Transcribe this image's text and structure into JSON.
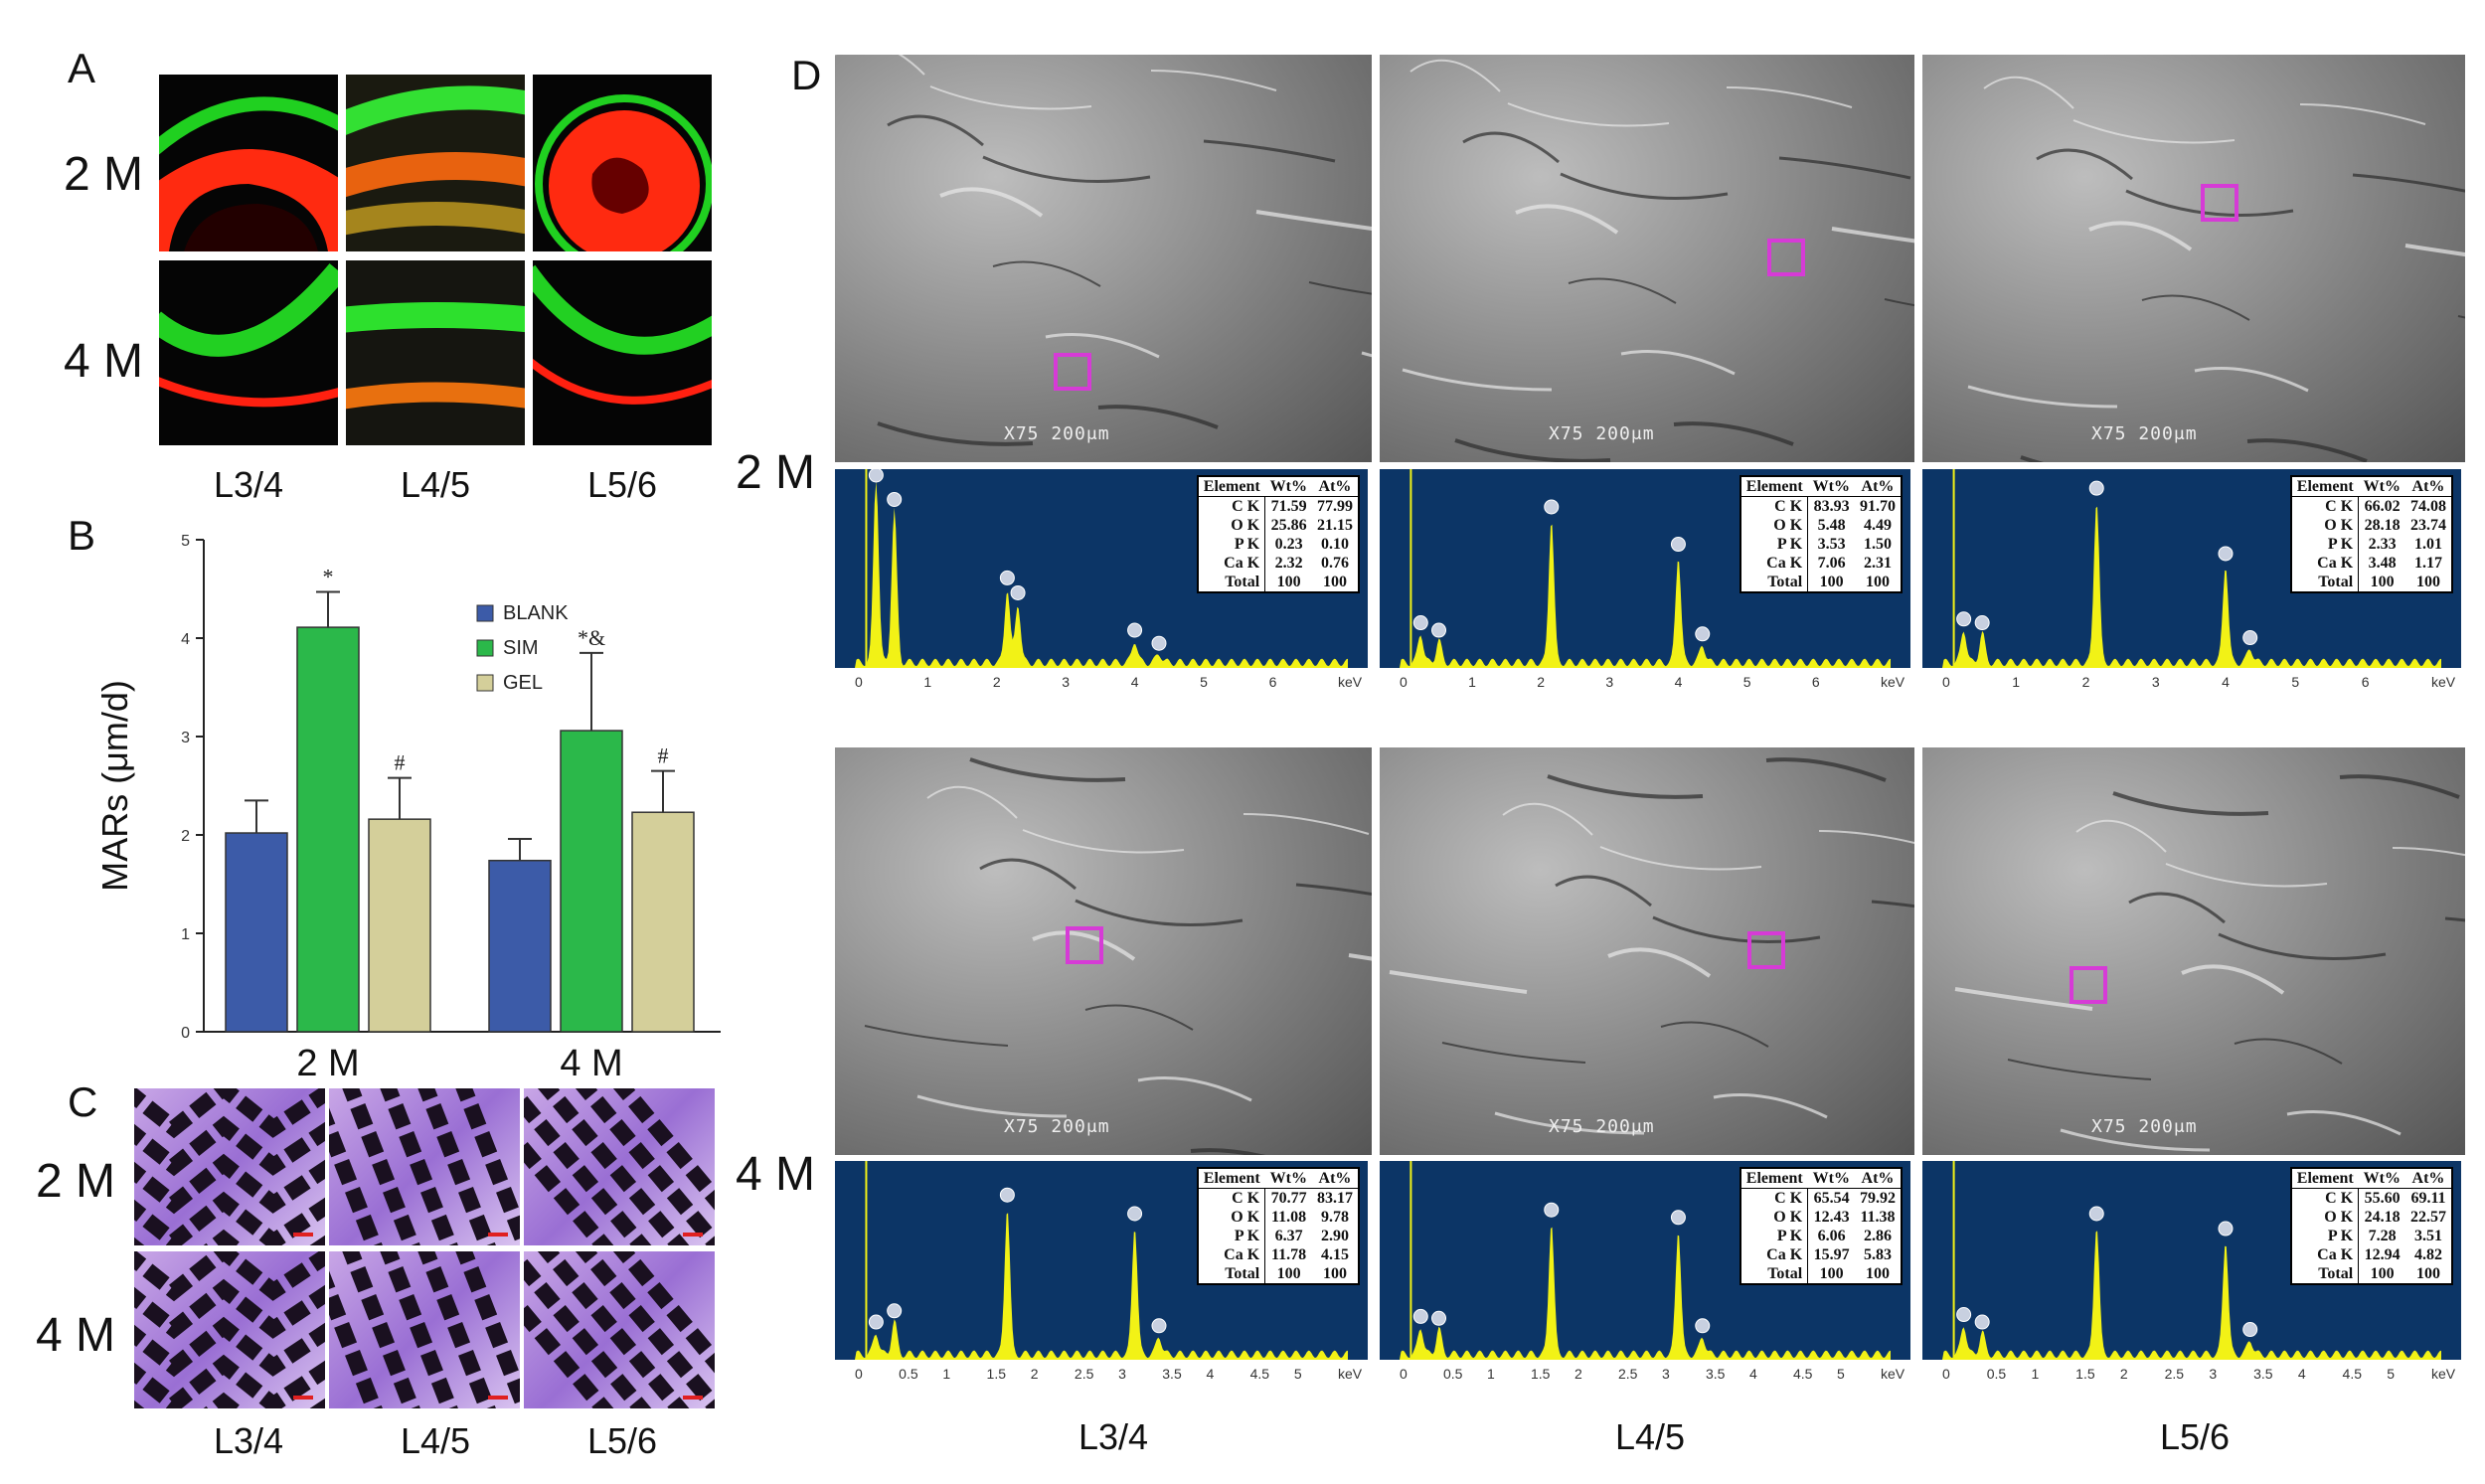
{
  "panel_labels": {
    "a": "A",
    "b": "B",
    "c": "C",
    "d": "D"
  },
  "timepoints": {
    "m2": "2 M",
    "m4": "4 M"
  },
  "segments": [
    "L3/4",
    "L4/5",
    "L5/6"
  ],
  "chart_data": {
    "type": "bar",
    "categories": [
      "2 M",
      "4 M"
    ],
    "series": [
      {
        "name": "BLANK",
        "values": [
          2.02,
          1.74
        ],
        "errors": [
          0.33,
          0.22
        ],
        "annotations": [
          "",
          ""
        ]
      },
      {
        "name": "SIM",
        "values": [
          4.11,
          3.06
        ],
        "errors": [
          0.36,
          0.79
        ],
        "annotations": [
          "*",
          "*&"
        ]
      },
      {
        "name": "GEL",
        "values": [
          2.16,
          2.23
        ],
        "errors": [
          0.42,
          0.42
        ],
        "annotations": [
          "#",
          "#"
        ]
      }
    ],
    "colors": [
      "#3c5ba8",
      "#2bb84a",
      "#d4cf9a"
    ],
    "ylabel": "MARs (μm/d)",
    "ylim": [
      0,
      5
    ],
    "yticks": [
      "0",
      "1",
      "2",
      "3",
      "4",
      "5"
    ],
    "legend_position": "top-right"
  },
  "sem": {
    "scale_label": "X75  200",
    "scale_unit": "μm"
  },
  "eds": {
    "headers": [
      "Element",
      "Wt%",
      "At%"
    ],
    "x_ticks_a": [
      "0",
      "1",
      "2",
      "3",
      "4",
      "5",
      "6",
      "keV"
    ],
    "x_ticks_b": [
      "0",
      "0.5",
      "1",
      "1.5",
      "2",
      "2.5",
      "3",
      "3.5",
      "4",
      "4.5",
      "5",
      "keV"
    ],
    "spectra": [
      {
        "id": "2m-l34",
        "rows": [
          [
            "C K",
            "71.59",
            "77.99"
          ],
          [
            "O K",
            "25.86",
            "21.15"
          ],
          [
            "P K",
            "0.23",
            "0.10"
          ],
          [
            "Ca K",
            "2.32",
            "0.76"
          ],
          [
            "Total",
            "100",
            "100"
          ]
        ]
      },
      {
        "id": "2m-l45",
        "rows": [
          [
            "C K",
            "83.93",
            "91.70"
          ],
          [
            "O K",
            "5.48",
            "4.49"
          ],
          [
            "P K",
            "3.53",
            "1.50"
          ],
          [
            "Ca K",
            "7.06",
            "2.31"
          ],
          [
            "Total",
            "100",
            "100"
          ]
        ]
      },
      {
        "id": "2m-l56",
        "rows": [
          [
            "C K",
            "66.02",
            "74.08"
          ],
          [
            "O K",
            "28.18",
            "23.74"
          ],
          [
            "P K",
            "2.33",
            "1.01"
          ],
          [
            "Ca K",
            "3.48",
            "1.17"
          ],
          [
            "Total",
            "100",
            "100"
          ]
        ]
      },
      {
        "id": "4m-l34",
        "rows": [
          [
            "C K",
            "70.77",
            "83.17"
          ],
          [
            "O K",
            "11.08",
            "9.78"
          ],
          [
            "P K",
            "6.37",
            "2.90"
          ],
          [
            "Ca K",
            "11.78",
            "4.15"
          ],
          [
            "Total",
            "100",
            "100"
          ]
        ]
      },
      {
        "id": "4m-l45",
        "rows": [
          [
            "C K",
            "65.54",
            "79.92"
          ],
          [
            "O K",
            "12.43",
            "11.38"
          ],
          [
            "P K",
            "6.06",
            "2.86"
          ],
          [
            "Ca K",
            "15.97",
            "5.83"
          ],
          [
            "Total",
            "100",
            "100"
          ]
        ]
      },
      {
        "id": "4m-l56",
        "rows": [
          [
            "C K",
            "55.60",
            "69.11"
          ],
          [
            "O K",
            "24.18",
            "22.57"
          ],
          [
            "P K",
            "7.28",
            "3.51"
          ],
          [
            "Ca K",
            "12.94",
            "4.82"
          ],
          [
            "Total",
            "100",
            "100"
          ]
        ]
      }
    ]
  }
}
